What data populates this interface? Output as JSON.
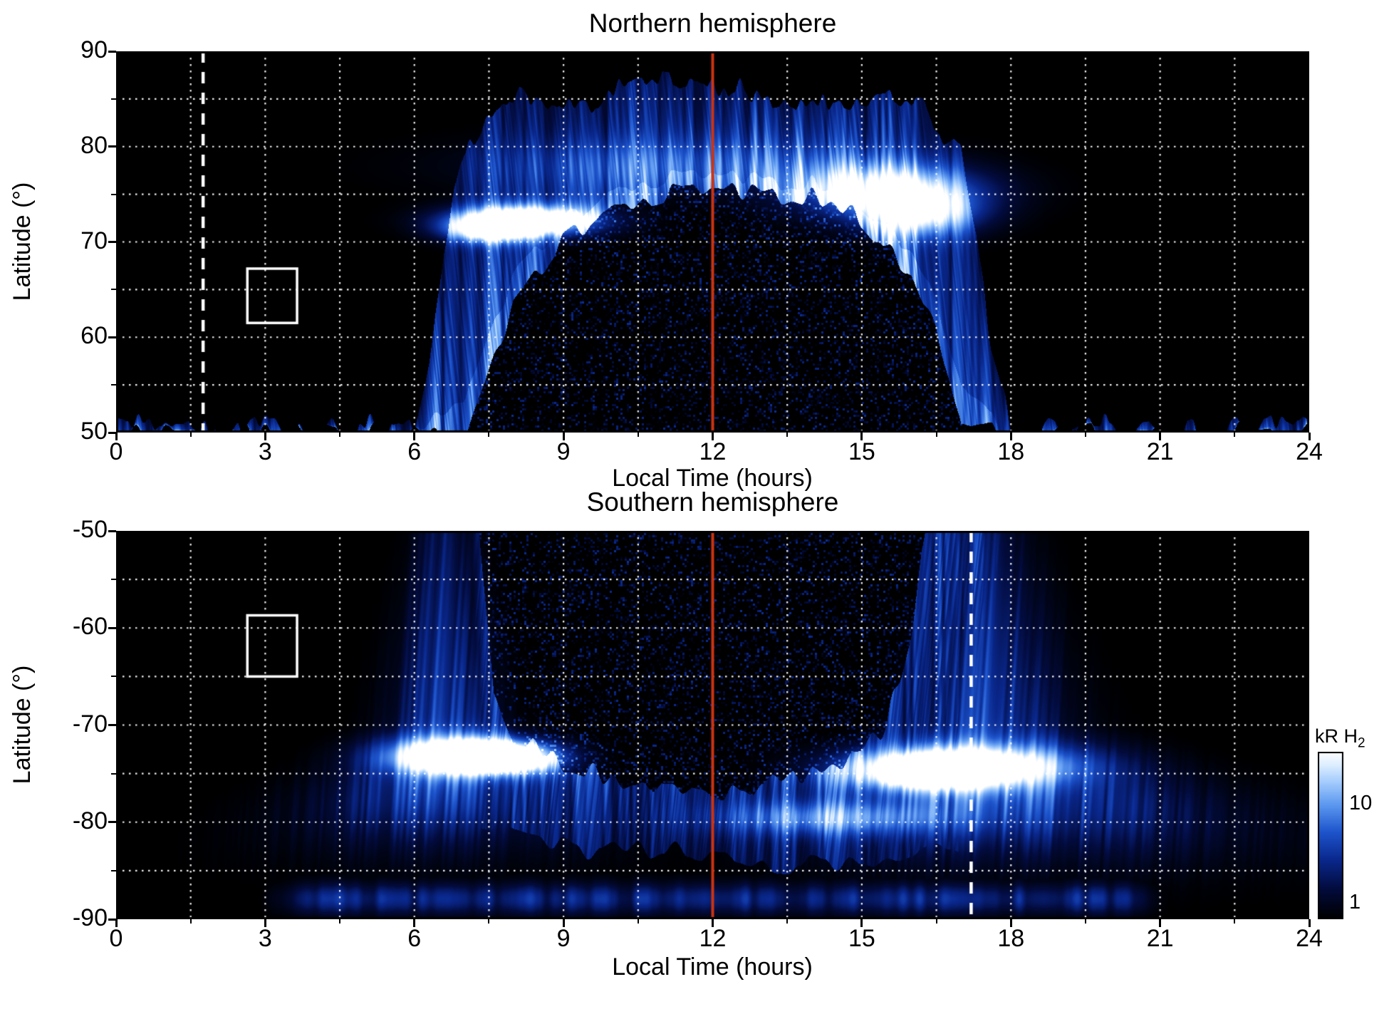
{
  "figure": {
    "background": "#ffffff"
  },
  "colors": {
    "noon_line": "#cc3311",
    "dashed_line": "#ffffff",
    "box": "#ffffff",
    "grid": "#ffffff",
    "axis": "#000000"
  },
  "chart_style": {
    "colormap_stops": [
      [
        0,
        [
          0,
          0,
          0
        ]
      ],
      [
        0.18,
        [
          3,
          12,
          62
        ]
      ],
      [
        0.35,
        [
          10,
          40,
          140
        ]
      ],
      [
        0.52,
        [
          30,
          85,
          205
        ]
      ],
      [
        0.68,
        [
          92,
          152,
          240
        ]
      ],
      [
        0.82,
        [
          165,
          205,
          253
        ]
      ],
      [
        0.92,
        [
          221,
          238,
          255
        ]
      ],
      [
        1,
        [
          255,
          255,
          255
        ]
      ]
    ]
  },
  "colorbar": {
    "label": "kR H",
    "label_sub": "2",
    "scale": "log",
    "ticks": [
      {
        "label": "10",
        "frac_from_top": 0.31
      },
      {
        "label": "1",
        "frac_from_top": 0.9
      }
    ]
  },
  "chart_data": [
    {
      "type": "heatmap",
      "title": "Northern hemisphere",
      "xlabel": "Local Time (hours)",
      "ylabel": "Latitude (°)",
      "xlim": [
        0,
        24
      ],
      "ylim": [
        50,
        90
      ],
      "xticks": [
        0,
        3,
        6,
        9,
        12,
        15,
        18,
        21,
        24
      ],
      "yticks": [
        50,
        60,
        70,
        80,
        90
      ],
      "grid": {
        "x_step": 1.5,
        "y_step": 5
      },
      "units": "kR H2",
      "annotations": {
        "noon_line_x": 12,
        "dashed_line_x": 1.75,
        "box": {
          "x0": 2.64,
          "x1": 3.64,
          "y0": 61.5,
          "y1": 67.2
        }
      },
      "aurora": {
        "seed": 7,
        "band_intensity": 0.42,
        "oval": {
          "t": [
            6.0,
            6.3,
            6.6,
            7.0,
            7.5,
            8.0,
            9.0,
            10.0,
            11.0,
            12.0,
            13.0,
            14.0,
            15.0,
            16.0,
            16.5,
            17.0,
            17.3,
            17.6,
            18.0
          ],
          "outer": [
            50,
            58,
            70,
            80,
            83,
            84.5,
            85,
            85.5,
            86,
            86,
            85.5,
            85.2,
            85,
            84,
            83,
            79,
            70,
            58,
            50
          ],
          "inner": [
            50,
            50,
            50,
            50,
            57,
            63.5,
            70,
            73,
            75,
            75.5,
            75,
            74.5,
            72.5,
            66.5,
            61,
            50,
            50,
            50,
            50
          ]
        },
        "spots": [
          {
            "t": 8.2,
            "lat": 72.2,
            "st": 1.0,
            "sl": 1.1,
            "amp": 1.25
          },
          {
            "t": 7.5,
            "lat": 71.2,
            "st": 0.6,
            "sl": 0.9,
            "amp": 0.7
          },
          {
            "t": 15.6,
            "lat": 75.2,
            "st": 1.3,
            "sl": 2.0,
            "amp": 0.8
          },
          {
            "t": 16.2,
            "lat": 72.8,
            "st": 0.8,
            "sl": 1.6,
            "amp": 0.55
          },
          {
            "t": 11.0,
            "lat": 78.0,
            "st": 2.6,
            "sl": 2.0,
            "amp": 0.22
          }
        ],
        "speckle": {
          "density": 0.3,
          "max": 0.38
        }
      }
    },
    {
      "type": "heatmap",
      "title": "Southern hemisphere",
      "xlabel": "Local Time (hours)",
      "ylabel": "Latitude (°)",
      "xlim": [
        0,
        24
      ],
      "ylim": [
        -90,
        -50
      ],
      "xticks": [
        0,
        3,
        6,
        9,
        12,
        15,
        18,
        21,
        24
      ],
      "yticks": [
        -50,
        -60,
        -70,
        -80,
        -90
      ],
      "grid": {
        "x_step": 1.5,
        "y_step": 5
      },
      "units": "kR H2",
      "annotations": {
        "noon_line_x": 12,
        "dashed_line_x": 17.2,
        "box": {
          "x0": 2.64,
          "x1": 3.64,
          "y0": -65,
          "y1": -58.7
        }
      },
      "aurora": {
        "seed": 13,
        "band_intensity": 0.34,
        "interior": {
          "t": [
            7.3,
            7.6,
            8,
            9,
            10,
            11,
            12,
            13,
            14,
            15,
            15.5,
            16,
            16.3
          ],
          "bottom": [
            50,
            66,
            71,
            74,
            75.5,
            76.5,
            77,
            76.5,
            74.5,
            73,
            70,
            60,
            50
          ]
        },
        "bandBottom": {
          "t": [
            5.2,
            6,
            7,
            8,
            9,
            10,
            11,
            12,
            13,
            14,
            15,
            16,
            17,
            18,
            19,
            19.8
          ],
          "s": [
            50,
            68,
            79,
            81,
            82.5,
            83,
            83,
            83.5,
            84,
            84.5,
            84.2,
            83.5,
            82.5,
            80,
            70,
            50
          ]
        },
        "columns": [
          {
            "t": 6.6,
            "w0": 0.55,
            "wg": 0.022,
            "fan": 0.15,
            "asym": 1.0,
            "i0": 0.22,
            "i1": 0.5,
            "smax": 76
          },
          {
            "t": 17.35,
            "w0": 0.6,
            "wg": 0.025,
            "fan": 0.18,
            "asym": 1.45,
            "i0": 0.25,
            "i1": 0.52,
            "smax": 77
          }
        ],
        "spots": [
          {
            "t": 7.0,
            "s": 73.2,
            "st": 1.0,
            "ss": 1.3,
            "amp": 1.35
          },
          {
            "t": 7.9,
            "s": 73.3,
            "st": 0.7,
            "ss": 1.0,
            "amp": 0.8
          },
          {
            "t": 17.0,
            "s": 74.3,
            "st": 1.5,
            "ss": 1.5,
            "amp": 1.05
          },
          {
            "t": 16.2,
            "s": 75.0,
            "st": 0.9,
            "ss": 1.2,
            "amp": 0.6
          },
          {
            "t": 14.4,
            "s": 79.6,
            "st": 1.6,
            "ss": 1.2,
            "amp": 0.45
          }
        ],
        "bottomBand": {
          "t0": 2.8,
          "t1": 21.3,
          "s_peak": 87.9,
          "s_sigma": 1.6,
          "intensity": 0.34
        },
        "speckle": {
          "density": 0.3,
          "max": 0.38
        }
      }
    }
  ]
}
